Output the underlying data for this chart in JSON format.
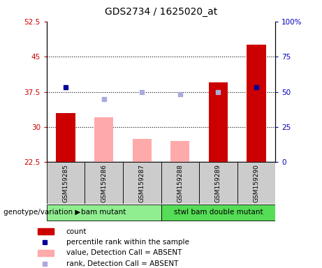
{
  "title": "GDS2734 / 1625020_at",
  "samples": [
    "GSM159285",
    "GSM159286",
    "GSM159287",
    "GSM159288",
    "GSM159289",
    "GSM159290"
  ],
  "groups": [
    {
      "label": "bam mutant",
      "color": "#90EE90",
      "indices": [
        0,
        1,
        2
      ]
    },
    {
      "label": "stwl bam double mutant",
      "color": "#55DD55",
      "indices": [
        3,
        4,
        5
      ]
    }
  ],
  "count_values": [
    33.0,
    null,
    null,
    null,
    39.5,
    47.5
  ],
  "count_absent_values": [
    null,
    32.0,
    27.5,
    27.0,
    null,
    null
  ],
  "rank_values": [
    38.5,
    null,
    null,
    null,
    null,
    38.5
  ],
  "rank_absent_values": [
    null,
    36.0,
    37.5,
    37.0,
    37.5,
    null
  ],
  "left_ylim": [
    22.5,
    52.5
  ],
  "right_ylim": [
    0,
    100
  ],
  "left_yticks": [
    22.5,
    30.0,
    37.5,
    45.0,
    52.5
  ],
  "right_yticks": [
    0,
    25,
    50,
    75,
    100
  ],
  "left_ytick_labels": [
    "22.5",
    "30",
    "37.5",
    "45",
    "52.5"
  ],
  "right_ytick_labels": [
    "0",
    "25",
    "50",
    "75",
    "100%"
  ],
  "hlines": [
    30.0,
    37.5,
    45.0
  ],
  "bar_width": 0.5,
  "count_color": "#CC0000",
  "count_absent_color": "#FFAAAA",
  "rank_color": "#000099",
  "rank_absent_color": "#AAAADD",
  "left_tick_color": "#CC0000",
  "right_tick_color": "#0000BB",
  "sample_bg_color": "#CCCCCC",
  "genotype_label": "genotype/variation",
  "legend_items": [
    {
      "label": "count",
      "color": "#CC0000",
      "type": "bar"
    },
    {
      "label": "percentile rank within the sample",
      "color": "#000099",
      "type": "square"
    },
    {
      "label": "value, Detection Call = ABSENT",
      "color": "#FFAAAA",
      "type": "bar"
    },
    {
      "label": "rank, Detection Call = ABSENT",
      "color": "#AAAADD",
      "type": "square"
    }
  ]
}
